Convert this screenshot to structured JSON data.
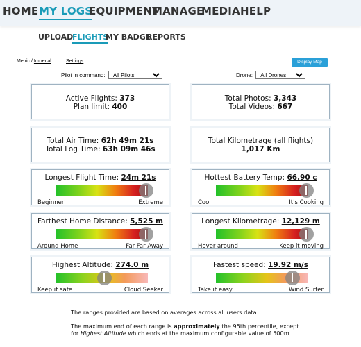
{
  "nav": {
    "items": [
      {
        "label": "HOME"
      },
      {
        "label": "MY LOGS"
      },
      {
        "label": "EQUIPMENT"
      },
      {
        "label": "MANAGE"
      },
      {
        "label": "MEDIA"
      },
      {
        "label": "HELP"
      }
    ]
  },
  "subnav": {
    "items": [
      {
        "label": "UPLOAD"
      },
      {
        "label": "FLIGHTS"
      },
      {
        "label": "MY BADGE"
      },
      {
        "label": "REPORTS"
      }
    ]
  },
  "units": {
    "metric": "Metric",
    "sep": " / ",
    "imperial": "Imperial"
  },
  "settings_label": "Settings",
  "display_map_label": "Display Map",
  "filters": {
    "pilot_label": "Pilot in command:",
    "pilot_value": "All Pilots",
    "drone_label": "Drone:",
    "drone_value": "All Drones"
  },
  "stats": {
    "active_flights_label": "Active Flights:",
    "active_flights_value": "373",
    "plan_limit_label": "Plan limit:",
    "plan_limit_value": "400",
    "total_photos_label": "Total Photos:",
    "total_photos_value": "3,343",
    "total_videos_label": "Total Videos:",
    "total_videos_value": "667",
    "total_air_time_label": "Total Air Time:",
    "total_air_time_value": "62h 49m 21s",
    "total_log_time_label": "Total Log Time:",
    "total_log_time_value": "63h 09m 46s",
    "total_km_label": "Total Kilometrage (all flights)",
    "total_km_value": "1,017 Km"
  },
  "gauges": [
    {
      "title": "Longest Flight Time:",
      "value": "24m 21s",
      "low": "Beginner",
      "high": "Extreme",
      "position": 0.98
    },
    {
      "title": "Hottest Battery Temp:",
      "value": "66.90 c",
      "low": "Cool",
      "high": "It's Cooking",
      "position": 0.98
    },
    {
      "title": "Farthest Home Distance:",
      "value": "5,525 m",
      "low": "Around Home",
      "high": "Far Far Away",
      "position": 0.98
    },
    {
      "title": "Longest Kilometrage:",
      "value": "12,129 m",
      "low": "Hover around",
      "high": "Keep it moving",
      "position": 0.98
    },
    {
      "title": "Highest Altitude:",
      "value": "274.0 m",
      "low": "Keep it safe",
      "high": "Cloud Seeker",
      "position": 0.53
    },
    {
      "title": "Fastest speed:",
      "value": "19.92 m/s",
      "low": "Take it easy",
      "high": "Wind Surfer",
      "position": 0.83
    }
  ],
  "footnotes": {
    "line1": "The ranges provided are based on averages across all users data.",
    "line2_a": "The maximum end of each range is ",
    "line2_b": "approximately",
    "line2_c": " the 95th percentile, except",
    "line3_a": "for ",
    "line3_b": "Highest Altitude",
    "line3_c": " which ends at the maximum configurable value of 500m."
  }
}
